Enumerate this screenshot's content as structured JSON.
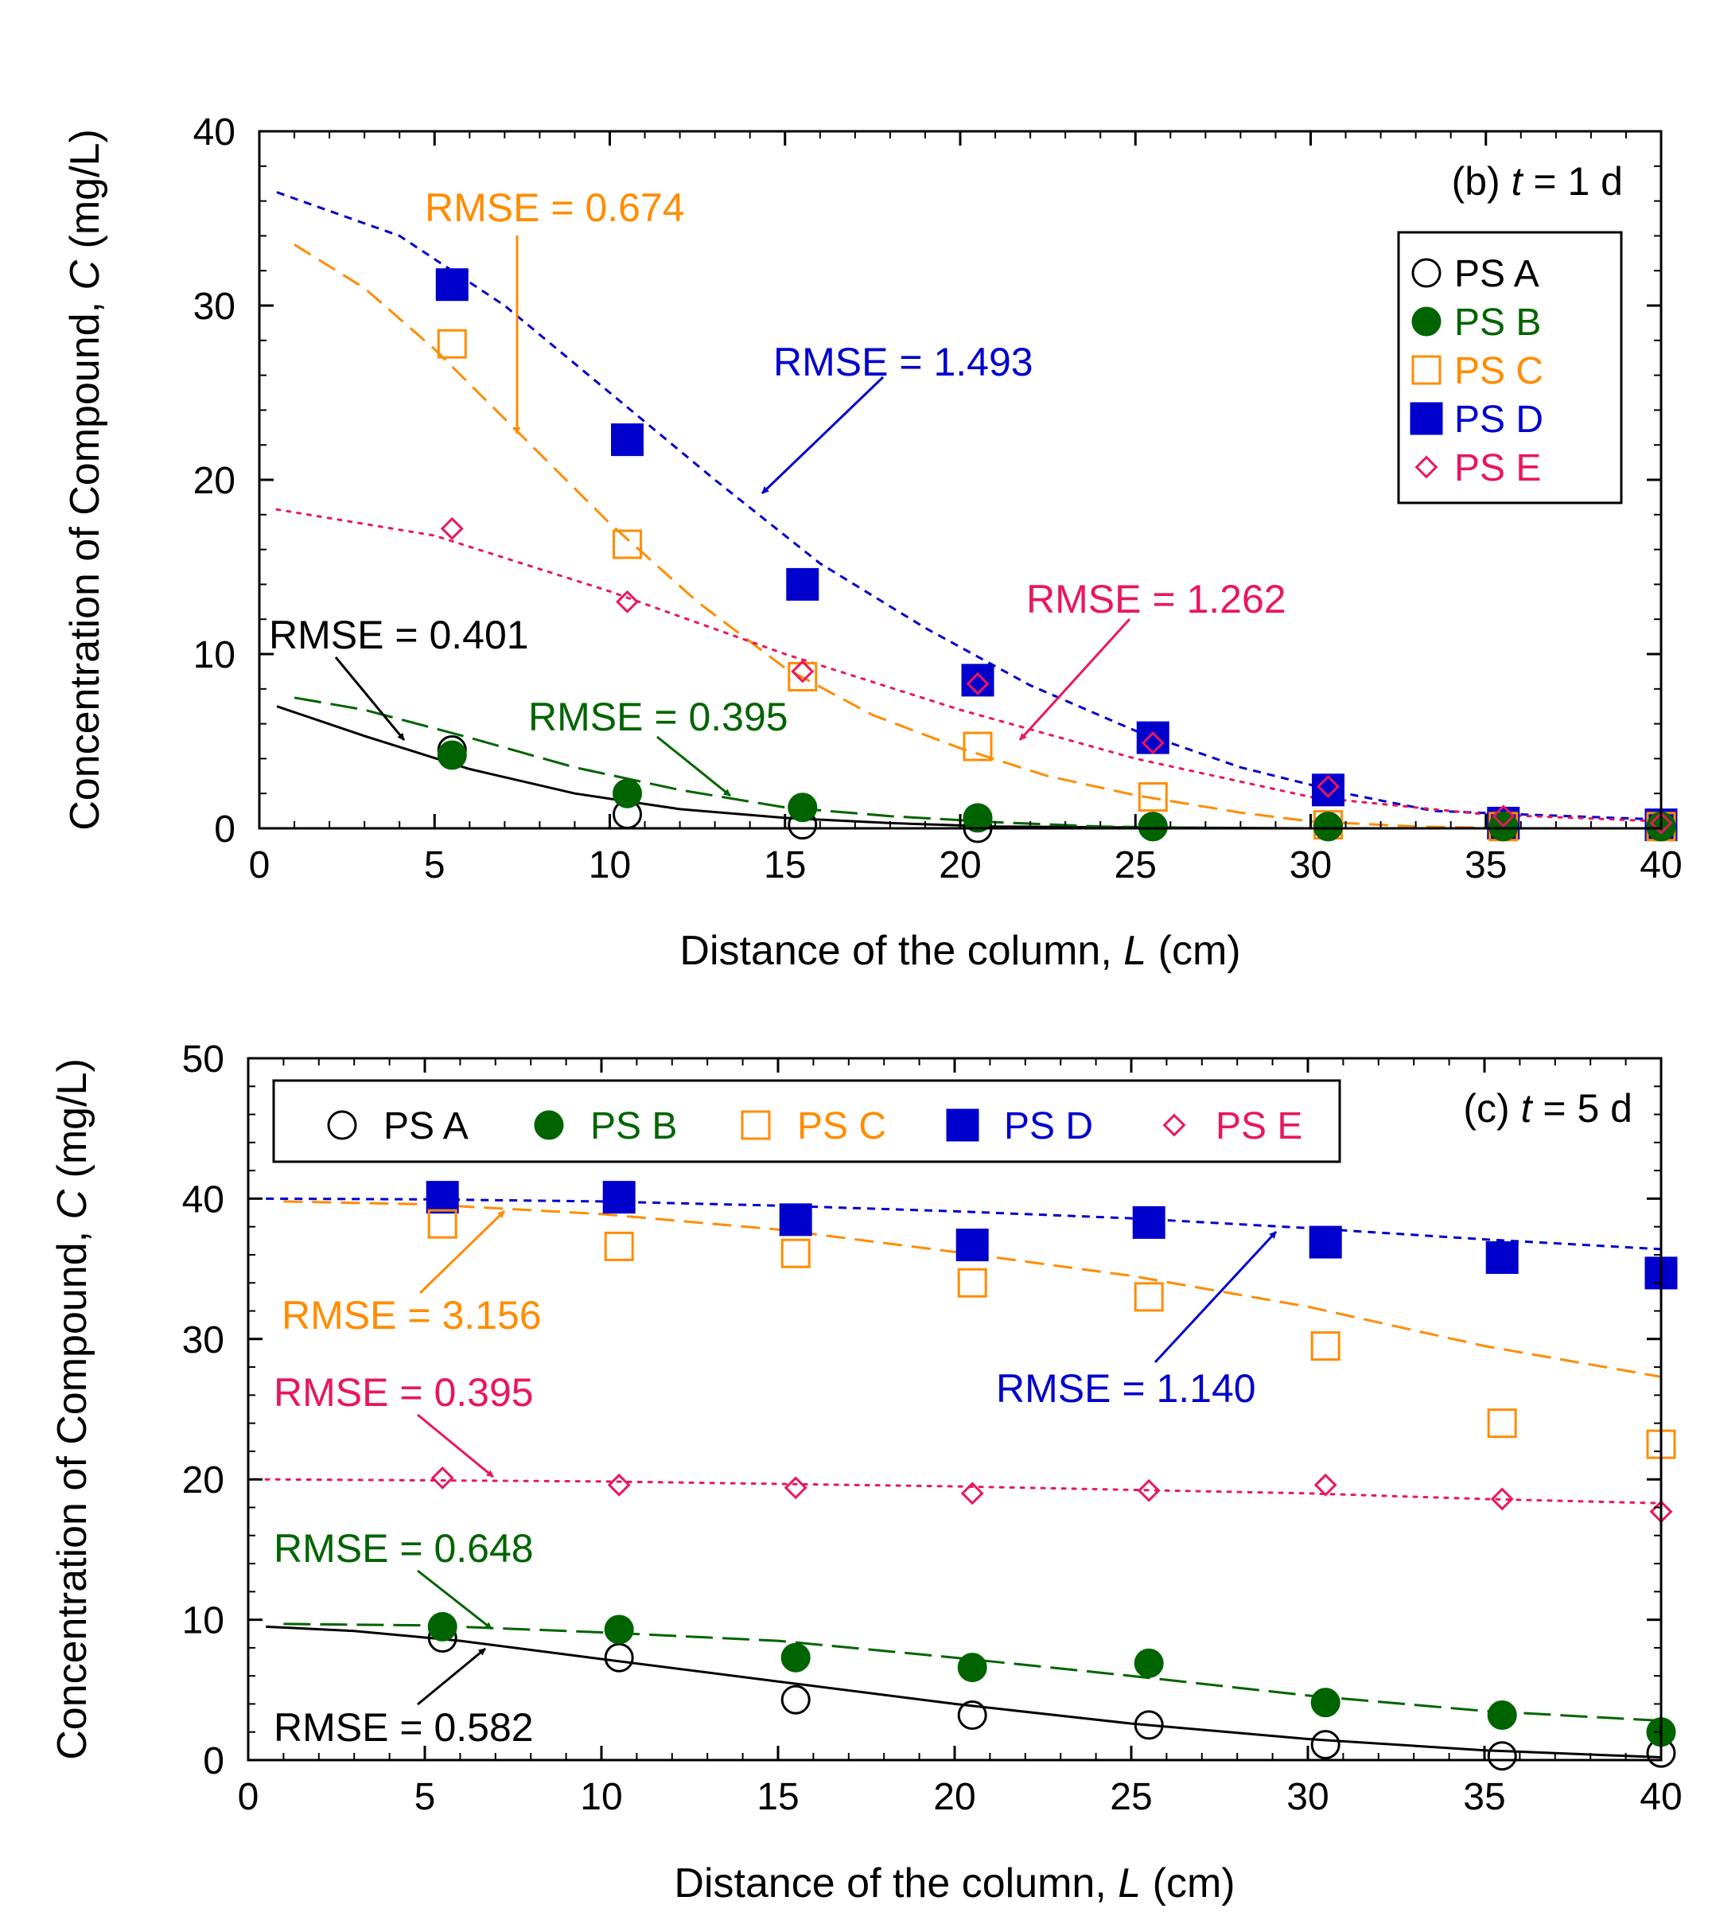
{
  "colors": {
    "PS A": "#000000",
    "PS B": "#006400",
    "PS C": "#ff8c00",
    "PS D": "#0000cd",
    "PS E": "#e8175d"
  },
  "chart_data": [
    {
      "type": "scatter",
      "panel_label": "(b)",
      "time_var": "t",
      "time_text": "= 1 d",
      "xlabel": "Distance of the column,",
      "xlabel_var": "L",
      "xlabel_unit": "(cm)",
      "ylabel": "Concentration of Compound,",
      "ylabel_var": "C",
      "ylabel_unit": "(mg/L)",
      "xlim": [
        0,
        40
      ],
      "ylim": [
        0,
        40
      ],
      "xticks": [
        0,
        5,
        10,
        15,
        20,
        25,
        30,
        35,
        40
      ],
      "yticks": [
        0,
        10,
        20,
        30,
        40
      ],
      "legend": {
        "placement": "top-right",
        "orientation": "vertical"
      },
      "series": [
        {
          "name": "PS A",
          "marker": "circle-open",
          "line": "solid",
          "points": [
            [
              5.5,
              4.5
            ],
            [
              10.5,
              0.8
            ],
            [
              15.5,
              0.2
            ],
            [
              20.5,
              0.0
            ],
            [
              25.5,
              0.1
            ],
            [
              30.5,
              0.1
            ],
            [
              35.5,
              0.1
            ],
            [
              40,
              0.1
            ]
          ],
          "fit": [
            [
              0.5,
              7.0
            ],
            [
              3,
              5.3
            ],
            [
              6,
              3.4
            ],
            [
              9,
              2.0
            ],
            [
              12,
              1.1
            ],
            [
              15,
              0.6
            ],
            [
              18,
              0.3
            ],
            [
              21,
              0.1
            ],
            [
              25,
              0.05
            ],
            [
              30,
              0.0
            ],
            [
              35,
              0.0
            ],
            [
              40,
              0.0
            ]
          ]
        },
        {
          "name": "PS B",
          "marker": "circle-filled",
          "line": "long-dash",
          "points": [
            [
              5.5,
              4.2
            ],
            [
              10.5,
              2.0
            ],
            [
              15.5,
              1.2
            ],
            [
              20.5,
              0.6
            ],
            [
              25.5,
              0.1
            ],
            [
              30.5,
              0.1
            ],
            [
              35.5,
              0.1
            ],
            [
              40,
              0.1
            ]
          ],
          "fit": [
            [
              1,
              7.5
            ],
            [
              3,
              6.8
            ],
            [
              6,
              5.2
            ],
            [
              9,
              3.5
            ],
            [
              12,
              2.2
            ],
            [
              15,
              1.2
            ],
            [
              18,
              0.7
            ],
            [
              21,
              0.35
            ],
            [
              24,
              0.1
            ],
            [
              28,
              0.0
            ],
            [
              40,
              0.0
            ]
          ]
        },
        {
          "name": "PS C",
          "marker": "square-open",
          "line": "dash",
          "points": [
            [
              5.5,
              27.8
            ],
            [
              10.5,
              16.3
            ],
            [
              15.5,
              8.7
            ],
            [
              20.5,
              4.7
            ],
            [
              25.5,
              1.8
            ],
            [
              30.5,
              0.2
            ],
            [
              35.5,
              0.1
            ],
            [
              40,
              0.1
            ]
          ],
          "fit": [
            [
              1,
              33.5
            ],
            [
              3,
              31.0
            ],
            [
              5,
              27.5
            ],
            [
              7.5,
              22.5
            ],
            [
              10,
              17.5
            ],
            [
              12.5,
              13.0
            ],
            [
              15,
              9.2
            ],
            [
              17.5,
              6.5
            ],
            [
              20,
              4.6
            ],
            [
              22.5,
              3.0
            ],
            [
              25,
              1.9
            ],
            [
              28,
              0.9
            ],
            [
              30,
              0.4
            ],
            [
              33,
              0.1
            ],
            [
              36,
              0.0
            ],
            [
              40,
              0.0
            ]
          ]
        },
        {
          "name": "PS D",
          "marker": "square-filled",
          "line": "short-dash",
          "points": [
            [
              5.5,
              31.2
            ],
            [
              10.5,
              22.3
            ],
            [
              15.5,
              14.0
            ],
            [
              20.5,
              8.5
            ],
            [
              25.5,
              5.2
            ],
            [
              30.5,
              2.2
            ],
            [
              35.5,
              0.3
            ],
            [
              40,
              0.2
            ]
          ],
          "fit": [
            [
              0.5,
              36.5
            ],
            [
              4,
              34.0
            ],
            [
              7,
              30.0
            ],
            [
              10,
              25.0
            ],
            [
              13,
              20.0
            ],
            [
              16,
              15.2
            ],
            [
              19,
              11.5
            ],
            [
              22,
              8.2
            ],
            [
              25,
              5.6
            ],
            [
              28,
              3.5
            ],
            [
              31,
              2.0
            ],
            [
              33.5,
              1.0
            ],
            [
              36,
              0.8
            ],
            [
              40,
              0.5
            ]
          ]
        },
        {
          "name": "PS E",
          "marker": "diamond-open",
          "line": "dotted",
          "points": [
            [
              5.5,
              17.2
            ],
            [
              10.5,
              13.0
            ],
            [
              15.5,
              9.0
            ],
            [
              20.5,
              8.3
            ],
            [
              25.5,
              4.9
            ],
            [
              30.5,
              2.4
            ],
            [
              35.5,
              0.7
            ],
            [
              40,
              0.3
            ]
          ],
          "fit": [
            [
              0.5,
              18.3
            ],
            [
              5,
              16.8
            ],
            [
              10,
              13.6
            ],
            [
              15,
              10.0
            ],
            [
              20,
              6.8
            ],
            [
              25,
              4.0
            ],
            [
              30,
              1.8
            ],
            [
              35,
              0.8
            ],
            [
              40,
              0.4
            ]
          ]
        }
      ],
      "annotations": [
        {
          "text": "RMSE = 0.401",
          "series": "PS A"
        },
        {
          "text": "RMSE = 0.395",
          "series": "PS B"
        },
        {
          "text": "RMSE = 0.674",
          "series": "PS C"
        },
        {
          "text": "RMSE = 1.493",
          "series": "PS D"
        },
        {
          "text": "RMSE = 1.262",
          "series": "PS E"
        }
      ]
    },
    {
      "type": "scatter",
      "panel_label": "(c)",
      "time_var": "t",
      "time_text": "= 5 d",
      "xlabel": "Distance of the column,",
      "xlabel_var": "L",
      "xlabel_unit": "(cm)",
      "ylabel": "Concentration of Compound,",
      "ylabel_var": "C",
      "ylabel_unit": "(mg/L)",
      "xlim": [
        0,
        40
      ],
      "ylim": [
        0,
        50
      ],
      "xticks": [
        0,
        5,
        10,
        15,
        20,
        25,
        30,
        35,
        40
      ],
      "yticks": [
        0,
        10,
        20,
        30,
        40,
        50
      ],
      "legend": {
        "placement": "top-left",
        "orientation": "horizontal"
      },
      "series": [
        {
          "name": "PS A",
          "marker": "circle-open",
          "line": "solid",
          "points": [
            [
              5.5,
              8.7
            ],
            [
              10.5,
              7.3
            ],
            [
              15.5,
              4.3
            ],
            [
              20.5,
              3.2
            ],
            [
              25.5,
              2.5
            ],
            [
              30.5,
              1.1
            ],
            [
              35.5,
              0.3
            ],
            [
              40,
              0.5
            ]
          ],
          "fit": [
            [
              0.5,
              9.5
            ],
            [
              3,
              9.2
            ],
            [
              6,
              8.5
            ],
            [
              10,
              7.2
            ],
            [
              15,
              5.6
            ],
            [
              20,
              4.0
            ],
            [
              25,
              2.6
            ],
            [
              30,
              1.5
            ],
            [
              35,
              0.7
            ],
            [
              40,
              0.2
            ]
          ]
        },
        {
          "name": "PS B",
          "marker": "circle-filled",
          "line": "long-dash",
          "points": [
            [
              5.5,
              9.5
            ],
            [
              10.5,
              9.3
            ],
            [
              15.5,
              7.3
            ],
            [
              20.5,
              6.6
            ],
            [
              25.5,
              6.9
            ],
            [
              30.5,
              4.1
            ],
            [
              35.5,
              3.2
            ],
            [
              40,
              2.0
            ]
          ],
          "fit": [
            [
              1,
              9.7
            ],
            [
              5,
              9.6
            ],
            [
              10,
              9.1
            ],
            [
              15,
              8.5
            ],
            [
              20,
              7.3
            ],
            [
              25,
              6.0
            ],
            [
              30,
              4.6
            ],
            [
              35,
              3.5
            ],
            [
              40,
              2.8
            ]
          ]
        },
        {
          "name": "PS C",
          "marker": "square-open",
          "line": "dash",
          "points": [
            [
              5.5,
              38.2
            ],
            [
              10.5,
              36.6
            ],
            [
              15.5,
              36.1
            ],
            [
              20.5,
              34.0
            ],
            [
              25.5,
              33.0
            ],
            [
              30.5,
              29.5
            ],
            [
              35.5,
              24.0
            ],
            [
              40,
              22.5
            ]
          ],
          "fit": [
            [
              1,
              39.8
            ],
            [
              5,
              39.6
            ],
            [
              10,
              38.9
            ],
            [
              15,
              37.8
            ],
            [
              20,
              36.2
            ],
            [
              25,
              34.5
            ],
            [
              30,
              32.3
            ],
            [
              35,
              29.5
            ],
            [
              40,
              27.3
            ]
          ]
        },
        {
          "name": "PS D",
          "marker": "square-filled",
          "line": "short-dash",
          "points": [
            [
              5.5,
              40.1
            ],
            [
              10.5,
              40.1
            ],
            [
              15.5,
              38.5
            ],
            [
              20.5,
              36.7
            ],
            [
              25.5,
              38.3
            ],
            [
              30.5,
              36.9
            ],
            [
              35.5,
              35.8
            ],
            [
              40,
              34.7
            ]
          ],
          "fit": [
            [
              0.5,
              40.0
            ],
            [
              5,
              39.95
            ],
            [
              10,
              39.8
            ],
            [
              15,
              39.5
            ],
            [
              20,
              39.1
            ],
            [
              25,
              38.6
            ],
            [
              30,
              37.9
            ],
            [
              35,
              37.1
            ],
            [
              40,
              36.4
            ]
          ]
        },
        {
          "name": "PS E",
          "marker": "diamond-open",
          "line": "dotted",
          "points": [
            [
              5.5,
              20.1
            ],
            [
              10.5,
              19.6
            ],
            [
              15.5,
              19.4
            ],
            [
              20.5,
              19.0
            ],
            [
              25.5,
              19.2
            ],
            [
              30.5,
              19.6
            ],
            [
              35.5,
              18.6
            ],
            [
              40,
              17.7
            ]
          ],
          "fit": [
            [
              0.5,
              20.0
            ],
            [
              10,
              19.85
            ],
            [
              20,
              19.5
            ],
            [
              30,
              19.0
            ],
            [
              35,
              18.6
            ],
            [
              40,
              18.3
            ]
          ]
        }
      ],
      "annotations": [
        {
          "text": "RMSE = 0.582",
          "series": "PS A"
        },
        {
          "text": "RMSE = 0.648",
          "series": "PS B"
        },
        {
          "text": "RMSE = 3.156",
          "series": "PS C"
        },
        {
          "text": "RMSE = 1.140",
          "series": "PS D"
        },
        {
          "text": "RMSE = 0.395",
          "series": "PS E"
        }
      ]
    }
  ]
}
